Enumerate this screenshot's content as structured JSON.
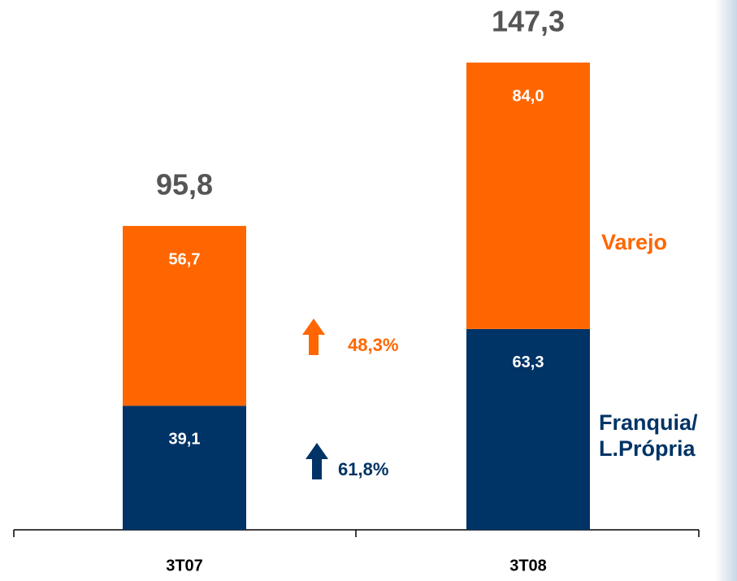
{
  "chart_data": {
    "type": "stacked_bar",
    "categories": [
      "3T07",
      "3T08"
    ],
    "series": [
      {
        "name": "Franquia/ L.Própria",
        "color": "#003366",
        "values": [
          39.1,
          63.3
        ],
        "value_labels": [
          "39,1",
          "63,3"
        ]
      },
      {
        "name": "Varejo",
        "color": "#ff6600",
        "values": [
          56.7,
          84.0
        ],
        "value_labels": [
          "56,7",
          "84,0"
        ]
      }
    ],
    "totals": [
      95.8,
      147.3
    ],
    "total_labels": [
      "95,8",
      "147,3"
    ],
    "annotations": [
      {
        "text": "48,3%",
        "color": "#ff6600"
      },
      {
        "text": "61,8%",
        "color": "#003366"
      }
    ]
  }
}
